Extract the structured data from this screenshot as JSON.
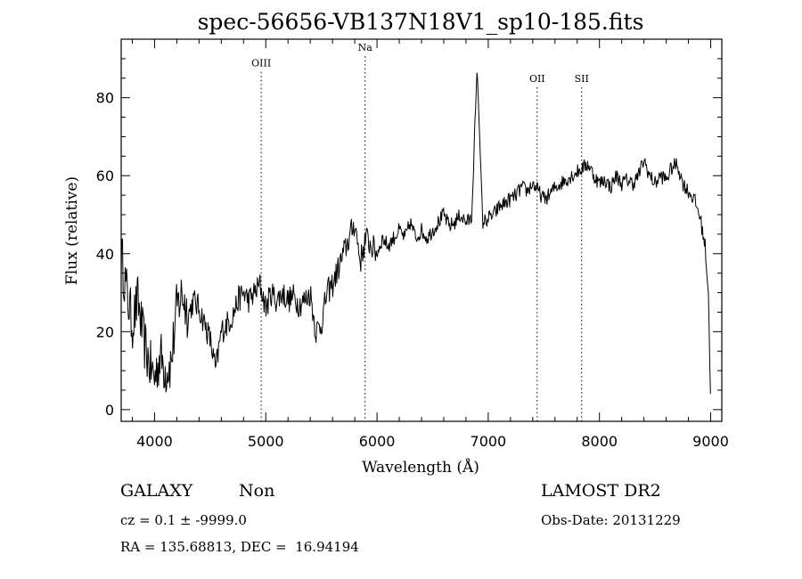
{
  "chart_data": {
    "type": "line",
    "title": "spec-56656-VB137N18V1_sp10-185.fits",
    "xlabel": "Wavelength (Å)",
    "ylabel": "Flux (relative)",
    "xlim": [
      3700,
      9100
    ],
    "ylim": [
      -3,
      95
    ],
    "x_ticks": [
      4000,
      5000,
      6000,
      7000,
      8000,
      9000
    ],
    "x_tick_labels": [
      "4000",
      "5000",
      "6000",
      "7000",
      "8000",
      "9000"
    ],
    "y_ticks": [
      0,
      20,
      40,
      60,
      80
    ],
    "y_tick_labels": [
      "0",
      "20",
      "40",
      "60",
      "80"
    ],
    "grid": false,
    "legend": "none",
    "line_color": "#000000",
    "spectral_lines": [
      {
        "label": "OIII",
        "wavelength": 4959,
        "label_y": 88
      },
      {
        "label": "Na",
        "wavelength": 5893,
        "label_y": 92
      },
      {
        "label": "OII",
        "wavelength": 7440,
        "label_y": 84
      },
      {
        "label": "SII",
        "wavelength": 7840,
        "label_y": 84
      }
    ],
    "series": [
      {
        "x": [
          3700,
          3750,
          3800,
          3850,
          3900,
          3950,
          4000,
          4050,
          4100,
          4150,
          4200,
          4250,
          4300,
          4350,
          4400,
          4450,
          4500,
          4550,
          4600,
          4650,
          4700,
          4750,
          4800,
          4850,
          4900,
          4950,
          5000,
          5050,
          5100,
          5150,
          5200,
          5250,
          5300,
          5350,
          5400,
          5450,
          5500,
          5550,
          5600,
          5650,
          5700,
          5750,
          5800,
          5850,
          5900,
          5950,
          6000,
          6050,
          6100,
          6150,
          6200,
          6250,
          6300,
          6350,
          6400,
          6450,
          6500,
          6550,
          6600,
          6650,
          6700,
          6750,
          6800,
          6850,
          6900,
          6950,
          7000,
          7050,
          7100,
          7150,
          7200,
          7250,
          7300,
          7350,
          7400,
          7450,
          7500,
          7550,
          7600,
          7650,
          7700,
          7750,
          7800,
          7850,
          7900,
          7950,
          8000,
          8050,
          8100,
          8150,
          8200,
          8250,
          8300,
          8350,
          8400,
          8450,
          8500,
          8550,
          8600,
          8650,
          8700,
          8750,
          8800,
          8850,
          8900,
          8950,
          8980,
          9000
        ],
        "values": [
          40,
          30,
          22,
          28,
          18,
          12,
          8,
          14,
          10,
          12,
          26,
          30,
          24,
          28,
          26,
          22,
          18,
          10,
          20,
          22,
          24,
          28,
          30,
          28,
          30,
          32,
          26,
          30,
          28,
          30,
          28,
          29,
          27,
          28,
          30,
          20,
          22,
          30,
          32,
          36,
          40,
          44,
          48,
          38,
          44,
          42,
          40,
          44,
          42,
          44,
          46,
          44,
          48,
          44,
          46,
          44,
          46,
          48,
          50,
          47,
          48,
          50,
          48,
          49,
          88,
          48,
          49,
          50,
          52,
          53,
          54,
          55,
          57,
          56,
          58,
          56,
          54,
          55,
          57,
          58,
          59,
          60,
          61,
          62,
          63,
          60,
          58,
          59,
          57,
          60,
          58,
          59,
          58,
          60,
          64,
          60,
          58,
          60,
          59,
          62,
          63,
          58,
          56,
          54,
          50,
          42,
          30,
          0
        ]
      }
    ]
  },
  "footer": {
    "object_class": "GALAXY",
    "subclass": "Non",
    "cz": "cz = 0.1 ± -9999.0",
    "coords": "RA = 135.68813, DEC =  16.94194",
    "survey": "LAMOST DR2",
    "obs_date": "Obs-Date: 20131229"
  }
}
